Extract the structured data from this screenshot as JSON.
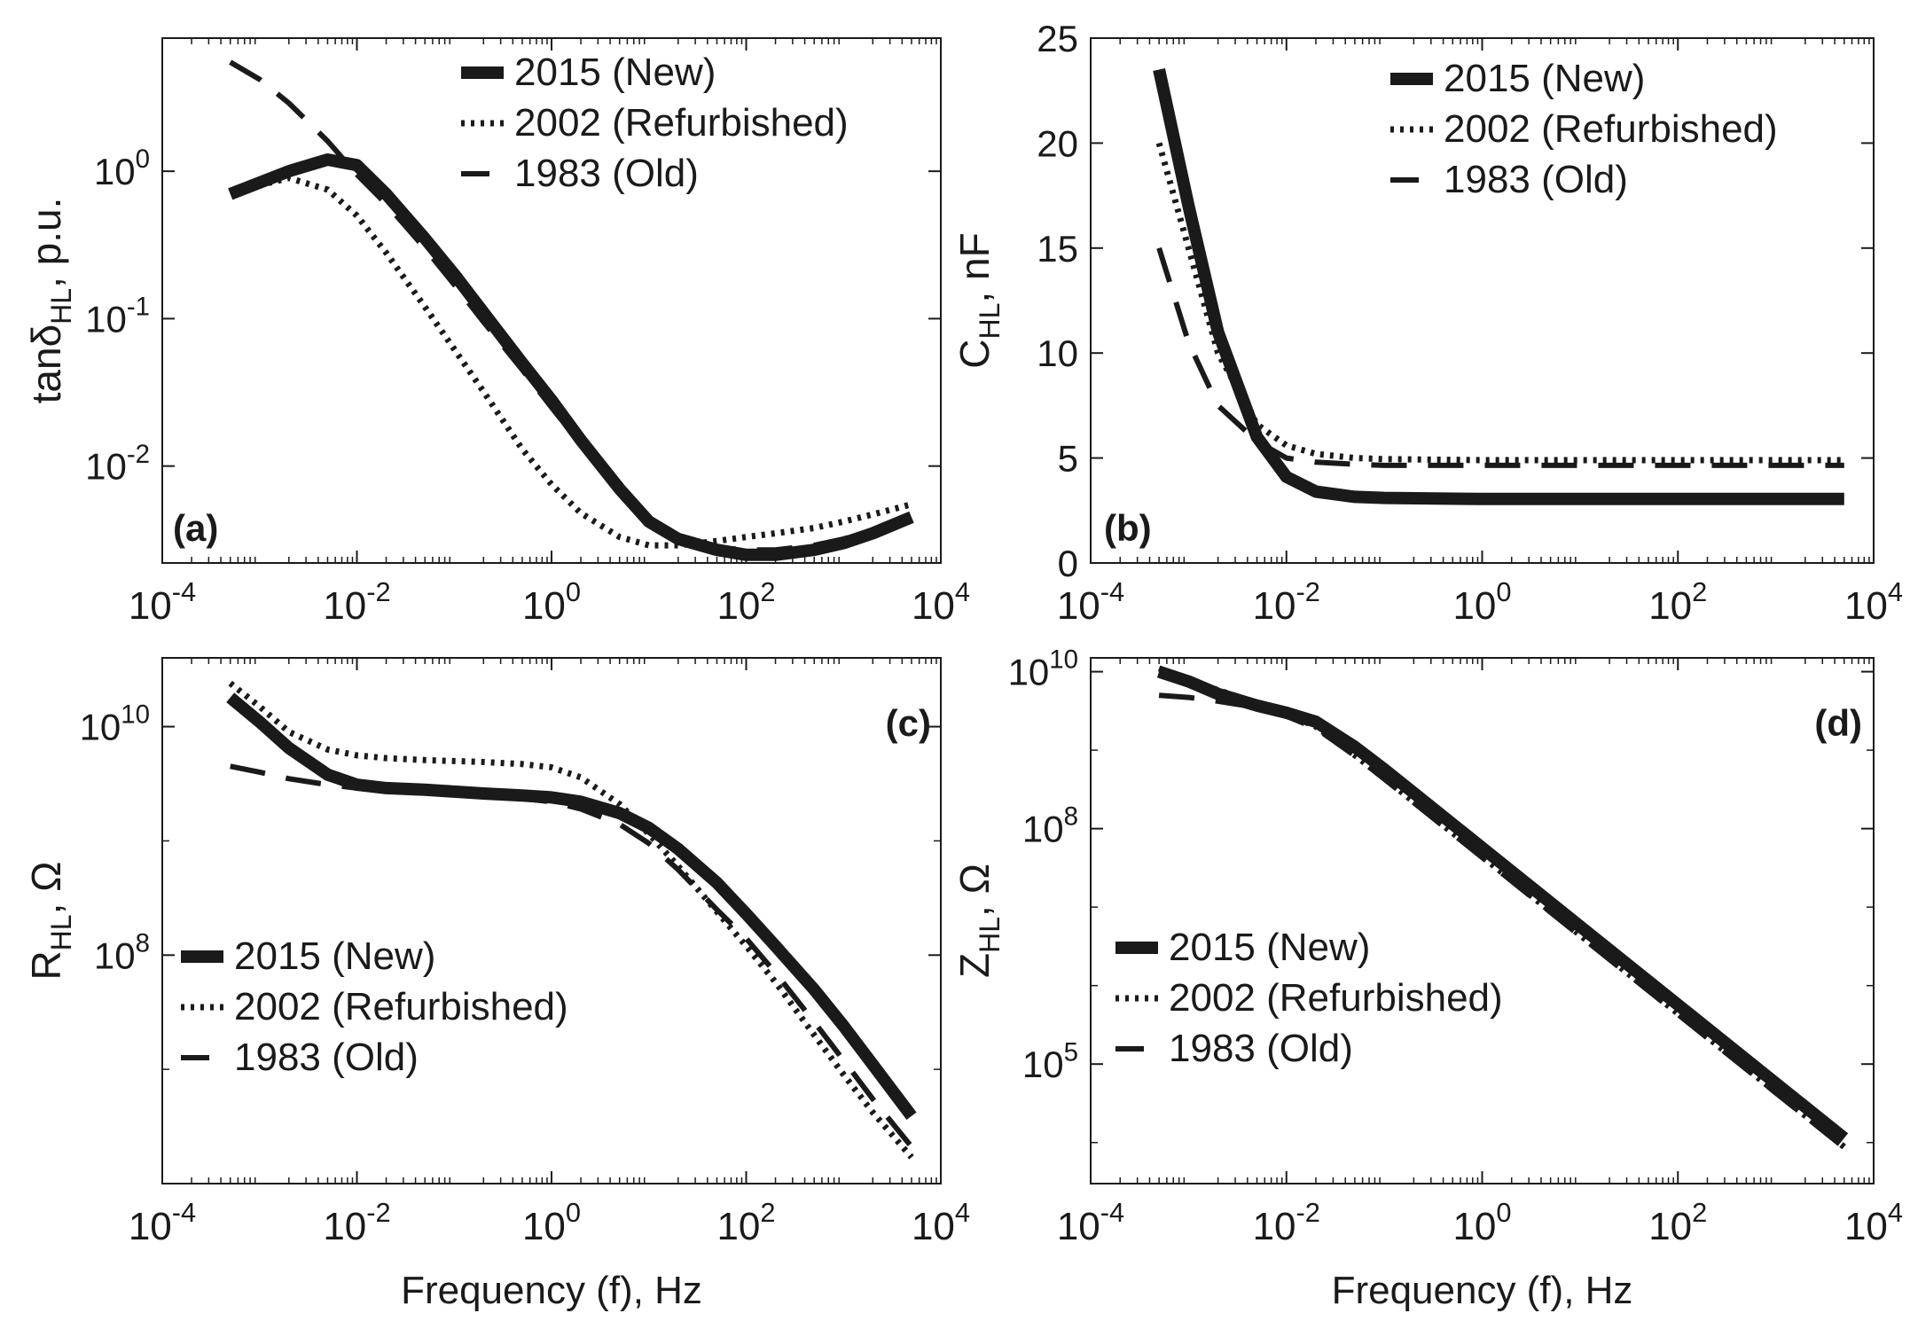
{
  "figure": {
    "xlabel": "Frequency (f), Hz",
    "x_tick_labels": [
      "10^-4",
      "10^-2",
      "10^0",
      "10^2",
      "10^4"
    ],
    "series_names": [
      "2015 (New)",
      "2002 (Refurbished)",
      "1983 (Old)"
    ],
    "series_styles": [
      "solid",
      "dotted",
      "dashed"
    ],
    "ink_color": "#1a1a1a"
  },
  "chart_data": [
    {
      "panel": "(a)",
      "type": "line",
      "xscale": "log",
      "yscale": "log",
      "xlim": [
        0.0001,
        10000
      ],
      "ylim": [
        0.0022,
        8
      ],
      "ylabel_main": "tanδ",
      "ylabel_sub": "HL",
      "ylabel_unit": ", p.u.",
      "y_ticks": [
        0.01,
        0.1,
        1
      ],
      "y_tick_labels": [
        [
          "10",
          "-2"
        ],
        [
          "10",
          "-1"
        ],
        [
          "10",
          "0"
        ]
      ],
      "x_ticks": [
        0.0001,
        0.01,
        1,
        100,
        10000
      ],
      "x_tick_labels": [
        [
          "10",
          "-4"
        ],
        [
          "10",
          "-2"
        ],
        [
          "10",
          "0"
        ],
        [
          "10",
          "2"
        ],
        [
          "10",
          "4"
        ]
      ],
      "xlabel": "",
      "legend_position": "top-right",
      "series": [
        {
          "name": "2015 (New)",
          "style": "solid",
          "x": [
            0.0005,
            0.002,
            0.005,
            0.01,
            0.02,
            0.05,
            0.1,
            0.2,
            0.5,
            1,
            2,
            5,
            10,
            20,
            50,
            100,
            200,
            500,
            1000,
            2000,
            5000
          ],
          "y": [
            0.7,
            1.0,
            1.2,
            1.1,
            0.7,
            0.35,
            0.2,
            0.11,
            0.05,
            0.028,
            0.015,
            0.007,
            0.0042,
            0.0032,
            0.0027,
            0.0025,
            0.0025,
            0.0027,
            0.003,
            0.0035,
            0.0045
          ]
        },
        {
          "name": "2002 (Refurbished)",
          "style": "dotted",
          "x": [
            0.0005,
            0.002,
            0.005,
            0.01,
            0.02,
            0.05,
            0.1,
            0.2,
            0.5,
            1,
            2,
            5,
            10,
            20,
            50,
            100,
            200,
            500,
            1000,
            2000,
            5000
          ],
          "y": [
            0.72,
            0.9,
            0.75,
            0.5,
            0.28,
            0.12,
            0.062,
            0.032,
            0.013,
            0.0075,
            0.0048,
            0.0033,
            0.0029,
            0.0029,
            0.0031,
            0.0033,
            0.0035,
            0.0038,
            0.0042,
            0.0047,
            0.0055
          ]
        },
        {
          "name": "1983 (Old)",
          "style": "dashed",
          "x": [
            0.0005,
            0.001,
            0.002,
            0.005,
            0.01,
            0.02,
            0.05,
            0.1,
            0.2,
            0.5,
            1,
            2,
            5,
            10,
            20,
            50,
            100,
            200,
            500,
            1000,
            2000,
            5000
          ],
          "y": [
            5.5,
            4.2,
            2.9,
            1.6,
            0.95,
            0.6,
            0.3,
            0.17,
            0.095,
            0.045,
            0.025,
            0.014,
            0.0068,
            0.0042,
            0.0033,
            0.0028,
            0.0027,
            0.0027,
            0.0029,
            0.0032,
            0.0037,
            0.0047
          ]
        }
      ]
    },
    {
      "panel": "(b)",
      "type": "line",
      "xscale": "log",
      "yscale": "linear",
      "xlim": [
        0.0001,
        10000
      ],
      "ylim": [
        0,
        25
      ],
      "ylabel_main": "C",
      "ylabel_sub": "HL",
      "ylabel_unit": ", nF",
      "y_ticks": [
        0,
        5,
        10,
        15,
        20,
        25
      ],
      "y_tick_labels": [
        [
          "0",
          ""
        ],
        [
          "5",
          ""
        ],
        [
          "10",
          ""
        ],
        [
          "15",
          ""
        ],
        [
          "20",
          ""
        ],
        [
          "25",
          ""
        ]
      ],
      "x_ticks": [
        0.0001,
        0.01,
        1,
        100,
        10000
      ],
      "x_tick_labels": [
        [
          "10",
          "-4"
        ],
        [
          "10",
          "-2"
        ],
        [
          "10",
          "0"
        ],
        [
          "10",
          "2"
        ],
        [
          "10",
          "4"
        ]
      ],
      "xlabel": "",
      "legend_position": "top-right",
      "series": [
        {
          "name": "2015 (New)",
          "style": "solid",
          "x": [
            0.0005,
            0.001,
            0.002,
            0.005,
            0.01,
            0.02,
            0.05,
            0.1,
            1,
            10,
            100,
            1000,
            5000
          ],
          "y": [
            23.5,
            17,
            11,
            6,
            4.1,
            3.4,
            3.15,
            3.1,
            3.05,
            3.05,
            3.05,
            3.05,
            3.05
          ]
        },
        {
          "name": "2002 (Refurbished)",
          "style": "dotted",
          "x": [
            0.0005,
            0.001,
            0.002,
            0.005,
            0.01,
            0.02,
            0.05,
            0.1,
            1,
            10,
            100,
            1000,
            5000
          ],
          "y": [
            20,
            15,
            10,
            6.6,
            5.6,
            5.2,
            5.0,
            4.95,
            4.9,
            4.9,
            4.9,
            4.9,
            4.9
          ]
        },
        {
          "name": "1983 (Old)",
          "style": "dashed",
          "x": [
            0.0005,
            0.001,
            0.002,
            0.005,
            0.01,
            0.02,
            0.05,
            0.1,
            1,
            10,
            100,
            1000,
            5000
          ],
          "y": [
            15,
            10.5,
            7.5,
            5.8,
            5.0,
            4.8,
            4.7,
            4.65,
            4.65,
            4.65,
            4.65,
            4.65,
            4.65
          ]
        }
      ]
    },
    {
      "panel": "(c)",
      "type": "line",
      "xscale": "log",
      "yscale": "log",
      "xlim": [
        0.0001,
        10000
      ],
      "ylim": [
        1000000,
        40000000000
      ],
      "ylabel_main": "R",
      "ylabel_sub": "HL",
      "ylabel_unit": ", Ω",
      "y_ticks": [
        100000000,
        10000000000
      ],
      "y_tick_labels": [
        [
          "10",
          "8"
        ],
        [
          "10",
          "10"
        ]
      ],
      "x_ticks": [
        0.0001,
        0.01,
        1,
        100,
        10000
      ],
      "x_tick_labels": [
        [
          "10",
          "-4"
        ],
        [
          "10",
          "-2"
        ],
        [
          "10",
          "0"
        ],
        [
          "10",
          "2"
        ],
        [
          "10",
          "4"
        ]
      ],
      "xlabel": "Frequency (f), Hz",
      "legend_position": "bottom-left",
      "series": [
        {
          "name": "2015 (New)",
          "style": "solid",
          "x": [
            0.0005,
            0.001,
            0.002,
            0.005,
            0.01,
            0.02,
            0.05,
            0.1,
            0.2,
            0.5,
            1,
            2,
            5,
            10,
            20,
            50,
            100,
            200,
            500,
            1000,
            2000,
            5000
          ],
          "y": [
            18000000000,
            11000000000,
            6500000000,
            3800000000,
            3100000000,
            2900000000,
            2800000000,
            2700000000,
            2600000000,
            2500000000,
            2400000000,
            2200000000,
            1750000000,
            1300000000,
            850000000,
            430000000,
            230000000,
            120000000,
            50000000,
            24000000,
            11000000,
            3900000
          ]
        },
        {
          "name": "2002 (Refurbished)",
          "style": "dotted",
          "x": [
            0.0005,
            0.001,
            0.002,
            0.005,
            0.01,
            0.02,
            0.05,
            0.1,
            0.2,
            0.5,
            1,
            2,
            5,
            10,
            20,
            50,
            100,
            200,
            500,
            1000,
            2000,
            5000
          ],
          "y": [
            24000000000,
            15000000000,
            9000000000,
            6300000000,
            5600000000,
            5300000000,
            5100000000,
            5000000000,
            4900000000,
            4700000000,
            4400000000,
            3600000000,
            2100000000,
            1150000000,
            600000000,
            240000000,
            120000000,
            58000000,
            20000000,
            9000000,
            4200000,
            1700000
          ]
        },
        {
          "name": "1983 (Old)",
          "style": "dashed",
          "x": [
            0.0005,
            0.001,
            0.002,
            0.005,
            0.01,
            0.02,
            0.05,
            0.1,
            0.2,
            0.5,
            1,
            2,
            5,
            10,
            20,
            50,
            100,
            200,
            500,
            1000,
            2000,
            5000
          ],
          "y": [
            4500000000,
            4000000000,
            3500000000,
            3100000000,
            2900000000,
            2800000000,
            2700000000,
            2600000000,
            2500000000,
            2350000000,
            2200000000,
            1900000000,
            1400000000,
            950000000,
            560000000,
            250000000,
            140000000,
            70000000,
            26000000,
            12000000,
            5500000,
            2100000
          ]
        }
      ]
    },
    {
      "panel": "(d)",
      "type": "line",
      "xscale": "log",
      "yscale": "log",
      "xlim": [
        0.0001,
        10000
      ],
      "ylim": [
        3000,
        15000000000
      ],
      "ylabel_main": "Z",
      "ylabel_sub": "HL",
      "ylabel_unit": ", Ω",
      "y_ticks": [
        100000,
        100000000,
        10000000000
      ],
      "y_tick_labels": [
        [
          "10",
          "5"
        ],
        [
          "10",
          "8"
        ],
        [
          "10",
          "10"
        ]
      ],
      "x_ticks": [
        0.0001,
        0.01,
        1,
        100,
        10000
      ],
      "x_tick_labels": [
        [
          "10",
          "-4"
        ],
        [
          "10",
          "-2"
        ],
        [
          "10",
          "0"
        ],
        [
          "10",
          "2"
        ],
        [
          "10",
          "4"
        ]
      ],
      "xlabel": "Frequency (f), Hz",
      "legend_position": "bottom-left",
      "series": [
        {
          "name": "2015 (New)",
          "style": "solid",
          "x": [
            0.0005,
            0.001,
            0.002,
            0.005,
            0.01,
            0.02,
            0.05,
            0.1,
            1,
            10,
            100,
            1000,
            5000
          ],
          "y": [
            10000000000,
            7500000000,
            5200000000,
            3700000000,
            3000000000,
            2300000000,
            1100000000,
            570000000,
            57000000,
            5700000,
            570000,
            57000,
            11400
          ]
        },
        {
          "name": "2002 (Refurbished)",
          "style": "dotted",
          "x": [
            0.0005,
            0.001,
            0.002,
            0.005,
            0.01,
            0.02,
            0.05,
            0.1,
            1,
            10,
            100,
            1000,
            5000
          ],
          "y": [
            11000000000,
            8000000000,
            5800000000,
            4000000000,
            2900000000,
            2000000000,
            860000000,
            440000000,
            44000000,
            4400000,
            440000,
            44000,
            8800
          ]
        },
        {
          "name": "1983 (Old)",
          "style": "dashed",
          "x": [
            0.0005,
            0.001,
            0.002,
            0.005,
            0.01,
            0.02,
            0.05,
            0.1,
            1,
            10,
            100,
            1000,
            5000
          ],
          "y": [
            5000000000,
            4700000000,
            4200000000,
            3500000000,
            2700000000,
            1900000000,
            850000000,
            430000000,
            43000000,
            4300000,
            430000,
            43000,
            8600
          ]
        }
      ]
    }
  ]
}
